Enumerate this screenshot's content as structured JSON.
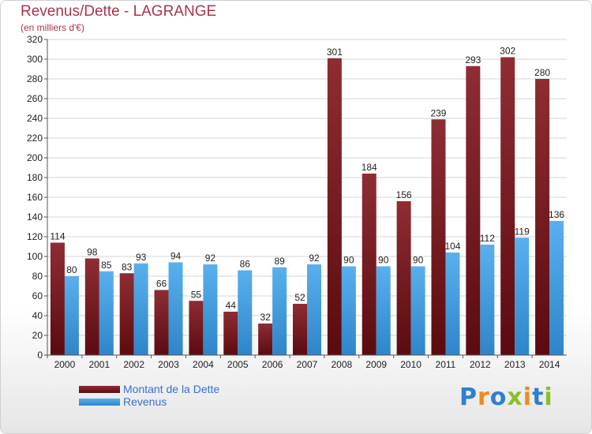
{
  "header": {
    "title": "Revenus/Dette - LAGRANGE",
    "subtitle": "(en milliers d'€)"
  },
  "legend": {
    "debt": "Montant de la Dette",
    "revenue": "Revenus"
  },
  "brand": {
    "logo_text": "Proxiti",
    "letters": [
      "P",
      "r",
      "o",
      "x",
      "i",
      "t",
      "i"
    ],
    "letter_colors": [
      "#2f7fd0",
      "#f08a1e",
      "#2f7fd0",
      "#8bbf2a",
      "#f08a1e",
      "#2f7fd0",
      "#8bbf2a"
    ]
  },
  "colors": {
    "debt": "#7b1c22",
    "revenue": "#3f9fe2",
    "title": "#a8344a"
  },
  "chart_data": {
    "type": "bar",
    "categories": [
      "2000",
      "2001",
      "2002",
      "2003",
      "2004",
      "2005",
      "2006",
      "2007",
      "2008",
      "2009",
      "2010",
      "2011",
      "2012",
      "2013",
      "2014"
    ],
    "series": [
      {
        "name": "Montant de la Dette",
        "values": [
          114,
          98,
          83,
          66,
          55,
          44,
          32,
          52,
          301,
          184,
          156,
          239,
          293,
          302,
          280
        ]
      },
      {
        "name": "Revenus",
        "values": [
          80,
          85,
          93,
          94,
          92,
          86,
          89,
          92,
          90,
          90,
          90,
          104,
          112,
          119,
          136
        ]
      }
    ],
    "title": "Revenus/Dette - LAGRANGE",
    "subtitle": "(en milliers d'€)",
    "ylim": [
      0,
      320
    ],
    "yticks": [
      0,
      20,
      40,
      60,
      80,
      100,
      120,
      140,
      160,
      180,
      200,
      220,
      240,
      260,
      280,
      300,
      320
    ],
    "grid": true,
    "legend_position": "bottom-left"
  }
}
